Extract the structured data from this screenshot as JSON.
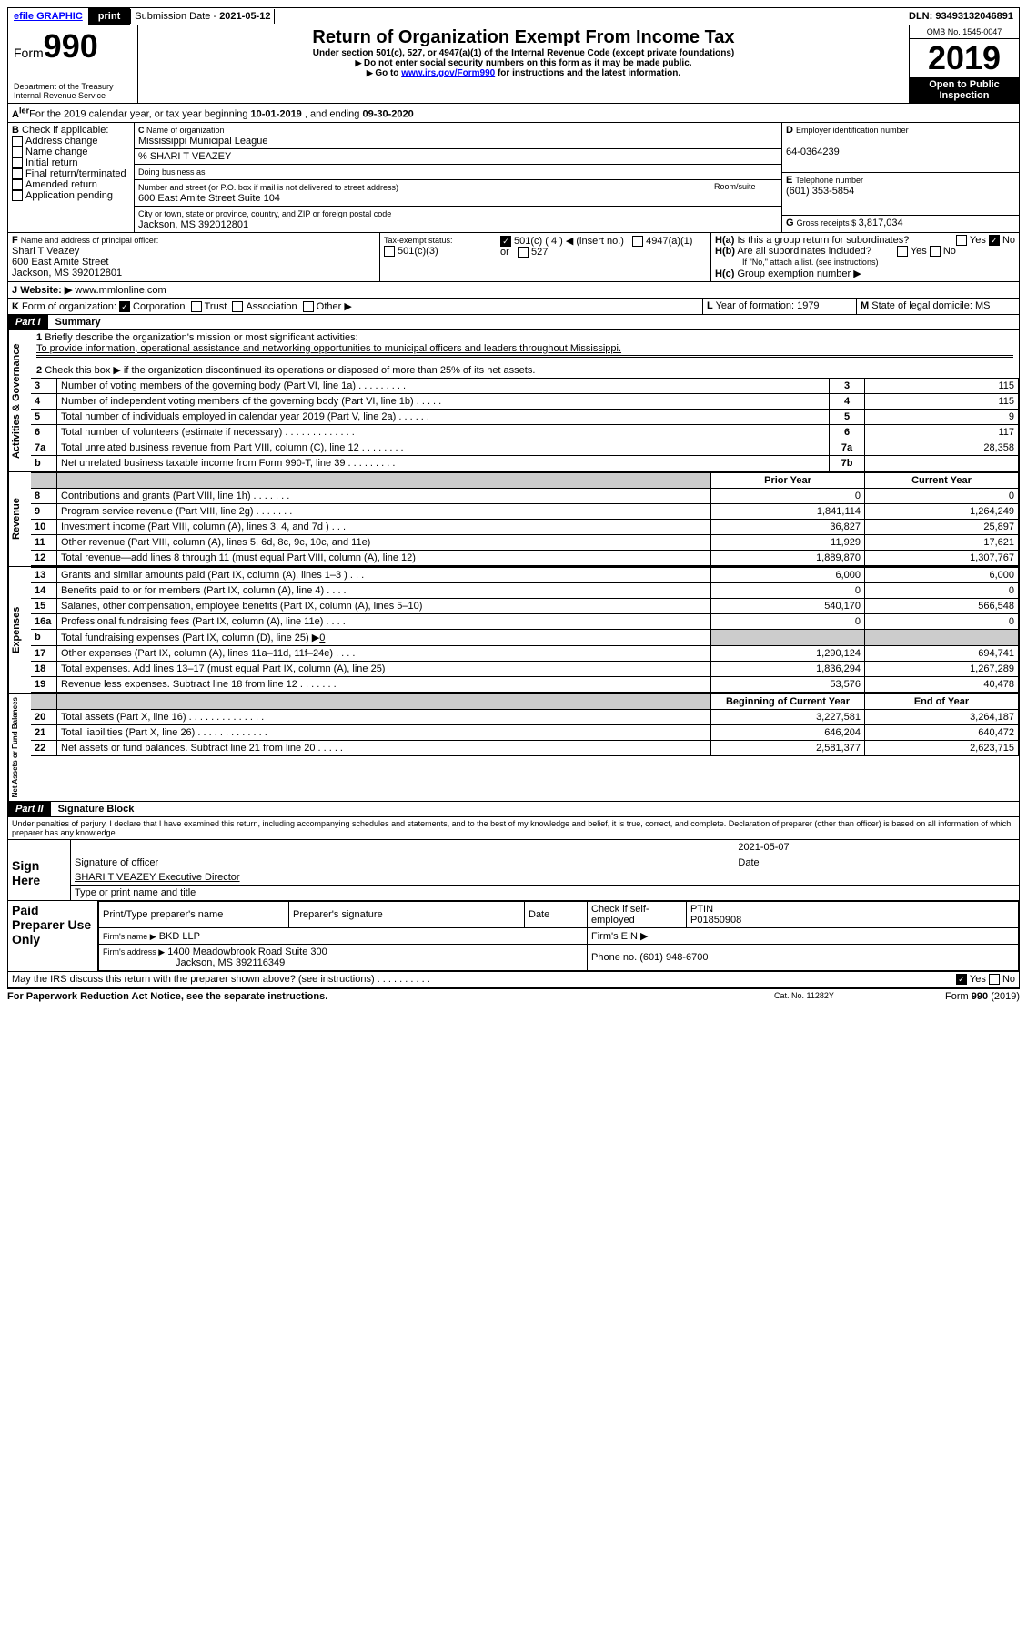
{
  "topbar": {
    "efile": "efile GRAPHIC",
    "print": "print",
    "subLabel": "Submission Date - ",
    "subDate": "2021-05-12",
    "dln": "DLN: 93493132046891"
  },
  "header": {
    "formWord": "Form",
    "formNum": "990",
    "dept": "Department of the Treasury",
    "irs": "Internal Revenue Service",
    "title": "Return of Organization Exempt From Income Tax",
    "sub1": "Under section 501(c), 527, or 4947(a)(1) of the Internal Revenue Code (except private foundations)",
    "sub2": "Do not enter social security numbers on this form as it may be made public.",
    "sub3pre": "Go to ",
    "sub3link": "www.irs.gov/Form990",
    "sub3post": " for instructions and the latest information.",
    "omb": "OMB No. 1545-0047",
    "year": "2019",
    "open": "Open to Public Inspection"
  },
  "lineA": {
    "pre": "For the 2019 calendar year, or tax year beginning ",
    "begin": "10-01-2019",
    "mid": " , and ending ",
    "end": "09-30-2020"
  },
  "B": {
    "label": "Check if applicable:",
    "opts": [
      "Address change",
      "Name change",
      "Initial return",
      "Final return/terminated",
      "Amended return",
      "Application pending"
    ],
    "prefix": "B"
  },
  "C": {
    "nameLbl": "Name of organization",
    "name": "Mississippi Municipal League",
    "care": "% SHARI T VEAZEY",
    "dbaLbl": "Doing business as",
    "streetLbl": "Number and street (or P.O. box if mail is not delivered to street address)",
    "street": "600 East Amite Street Suite 104",
    "roomLbl": "Room/suite",
    "cityLbl": "City or town, state or province, country, and ZIP or foreign postal code",
    "city": "Jackson, MS  392012801",
    "prefix": "C"
  },
  "D": {
    "lbl": "Employer identification number",
    "val": "64-0364239",
    "prefix": "D"
  },
  "E": {
    "lbl": "Telephone number",
    "val": "(601) 353-5854",
    "prefix": "E"
  },
  "G": {
    "lbl": "Gross receipts $ ",
    "val": "3,817,034",
    "prefix": "G"
  },
  "F": {
    "lbl": "Name and address of principal officer:",
    "name": "Shari T Veazey",
    "addr1": "600 East Amite Street",
    "addr2": "Jackson, MS  392012801",
    "prefix": "F"
  },
  "H": {
    "aLbl": "Is this a group return for subordinates?",
    "aNo": true,
    "bLbl": "Are all subordinates included?",
    "bNote": "If \"No,\" attach a list. (see instructions)",
    "cLbl": "Group exemption number ▶"
  },
  "I": {
    "lbl": "Tax-exempt status:",
    "c3": "501(c)(3)",
    "c": "501(c) ( 4 ) ◀ (insert no.)",
    "a1": "4947(a)(1) or",
    "s527": "527"
  },
  "J": {
    "lbl": "Website: ▶",
    "val": "www.mmlonline.com"
  },
  "K": {
    "lbl": "Form of organization:",
    "opts": [
      "Corporation",
      "Trust",
      "Association",
      "Other ▶"
    ],
    "checked": 0
  },
  "L": {
    "lbl": "Year of formation: ",
    "val": "1979"
  },
  "M": {
    "lbl": "State of legal domicile: ",
    "val": "MS"
  },
  "part1": {
    "bar": "Part I",
    "title": "Summary",
    "q1lbl": "Briefly describe the organization's mission or most significant activities:",
    "q1": "To provide information, operational assistance and networking opportunities to municipal officers and leaders throughout Mississippi.",
    "q2": "Check this box ▶        if the organization discontinued its operations or disposed of more than 25% of its net assets.",
    "sideA": "Activities & Governance",
    "sideR": "Revenue",
    "sideE": "Expenses",
    "sideN": "Net Assets or Fund Balances",
    "colPrior": "Prior Year",
    "colCurr": "Current Year",
    "colBeg": "Beginning of Current Year",
    "colEnd": "End of Year",
    "rows": [
      {
        "n": "3",
        "t": "Number of voting members of the governing body (Part VI, line 1a)   .     .     .     .     .     .     .     .     .",
        "box": "3",
        "v": "115"
      },
      {
        "n": "4",
        "t": "Number of independent voting members of the governing body (Part VI, line 1b)   .     .     .     .     .",
        "box": "4",
        "v": "115"
      },
      {
        "n": "5",
        "t": "Total number of individuals employed in calendar year 2019 (Part V, line 2a)   .     .     .     .     .     .",
        "box": "5",
        "v": "9"
      },
      {
        "n": "6",
        "t": "Total number of volunteers (estimate if necessary)   .     .     .     .     .     .     .     .     .     .     .     .     .",
        "box": "6",
        "v": "117"
      },
      {
        "n": "7a",
        "t": "Total unrelated business revenue from Part VIII, column (C), line 12   .     .     .     .     .     .     .     .",
        "box": "7a",
        "v": "28,358"
      },
      {
        "n": "b",
        "t": "Net unrelated business taxable income from Form 990-T, line 39   .     .     .     .     .     .     .     .     .",
        "box": "7b",
        "v": ""
      }
    ],
    "rev": [
      {
        "n": "8",
        "t": "Contributions and grants (Part VIII, line 1h)   .     .     .     .     .     .     .",
        "p": "0",
        "c": "0"
      },
      {
        "n": "9",
        "t": "Program service revenue (Part VIII, line 2g)   .     .     .     .     .     .     .",
        "p": "1,841,114",
        "c": "1,264,249"
      },
      {
        "n": "10",
        "t": "Investment income (Part VIII, column (A), lines 3, 4, and 7d )   .     .     .",
        "p": "36,827",
        "c": "25,897"
      },
      {
        "n": "11",
        "t": "Other revenue (Part VIII, column (A), lines 5, 6d, 8c, 9c, 10c, and 11e)",
        "p": "11,929",
        "c": "17,621"
      },
      {
        "n": "12",
        "t": "Total revenue—add lines 8 through 11 (must equal Part VIII, column (A), line 12)",
        "p": "1,889,870",
        "c": "1,307,767"
      }
    ],
    "exp": [
      {
        "n": "13",
        "t": "Grants and similar amounts paid (Part IX, column (A), lines 1–3 )   .     .     .",
        "p": "6,000",
        "c": "6,000"
      },
      {
        "n": "14",
        "t": "Benefits paid to or for members (Part IX, column (A), line 4)   .     .     .     .",
        "p": "0",
        "c": "0"
      },
      {
        "n": "15",
        "t": "Salaries, other compensation, employee benefits (Part IX, column (A), lines 5–10)",
        "p": "540,170",
        "c": "566,548"
      },
      {
        "n": "16a",
        "t": "Professional fundraising fees (Part IX, column (A), line 11e)   .     .     .     .",
        "p": "0",
        "c": "0"
      },
      {
        "n": "b",
        "t": "Total fundraising expenses (Part IX, column (D), line 25) ▶",
        "bval": "0",
        "shade": true
      },
      {
        "n": "17",
        "t": "Other expenses (Part IX, column (A), lines 11a–11d, 11f–24e)   .     .     .     .",
        "p": "1,290,124",
        "c": "694,741"
      },
      {
        "n": "18",
        "t": "Total expenses. Add lines 13–17 (must equal Part IX, column (A), line 25)",
        "p": "1,836,294",
        "c": "1,267,289"
      },
      {
        "n": "19",
        "t": "Revenue less expenses. Subtract line 18 from line 12   .     .     .     .     .     .     .",
        "p": "53,576",
        "c": "40,478"
      }
    ],
    "net": [
      {
        "n": "20",
        "t": "Total assets (Part X, line 16)   .     .     .     .     .     .     .     .     .     .     .     .     .     .",
        "p": "3,227,581",
        "c": "3,264,187"
      },
      {
        "n": "21",
        "t": "Total liabilities (Part X, line 26)   .     .     .     .     .     .     .     .     .     .     .     .     .",
        "p": "646,204",
        "c": "640,472"
      },
      {
        "n": "22",
        "t": "Net assets or fund balances. Subtract line 21 from line 20   .     .     .     .     .",
        "p": "2,581,377",
        "c": "2,623,715"
      }
    ]
  },
  "part2": {
    "bar": "Part II",
    "title": "Signature Block",
    "perjury": "Under penalties of perjury, I declare that I have examined this return, including accompanying schedules and statements, and to the best of my knowledge and belief, it is true, correct, and complete. Declaration of preparer (other than officer) is based on all information of which preparer has any knowledge.",
    "signHere": "Sign Here",
    "sigOff": "Signature of officer",
    "date": "2021-05-07",
    "dateLbl": "Date",
    "typed": "SHARI T VEAZEY Executive Director",
    "typedLbl": "Type or print name and title",
    "paid": "Paid Preparer Use Only",
    "prepName": "Print/Type preparer's name",
    "prepSig": "Preparer's signature",
    "prepDate": "Date",
    "selfchk": "Check        if self-employed",
    "ptinLbl": "PTIN",
    "ptin": "P01850908",
    "firmLbl": "Firm's name  ▶",
    "firm": "BKD LLP",
    "einLbl": "Firm's EIN ▶",
    "addrLbl": "Firm's address ▶",
    "addr1": "1400 Meadowbrook Road Suite 300",
    "addr2": "Jackson, MS  392116349",
    "phoneLbl": "Phone no. ",
    "phone": "(601) 948-6700",
    "discuss": "May the IRS discuss this return with the preparer shown above? (see instructions)   .     .     .     .     .     .     .     .     .     .",
    "dYes": true,
    "pra": "For Paperwork Reduction Act Notice, see the separate instructions.",
    "cat": "Cat. No. 11282Y",
    "formfoot": "Form 990 (2019)"
  },
  "colors": {
    "link": "#0000ff",
    "black": "#000000",
    "shade": "#cccccc"
  }
}
